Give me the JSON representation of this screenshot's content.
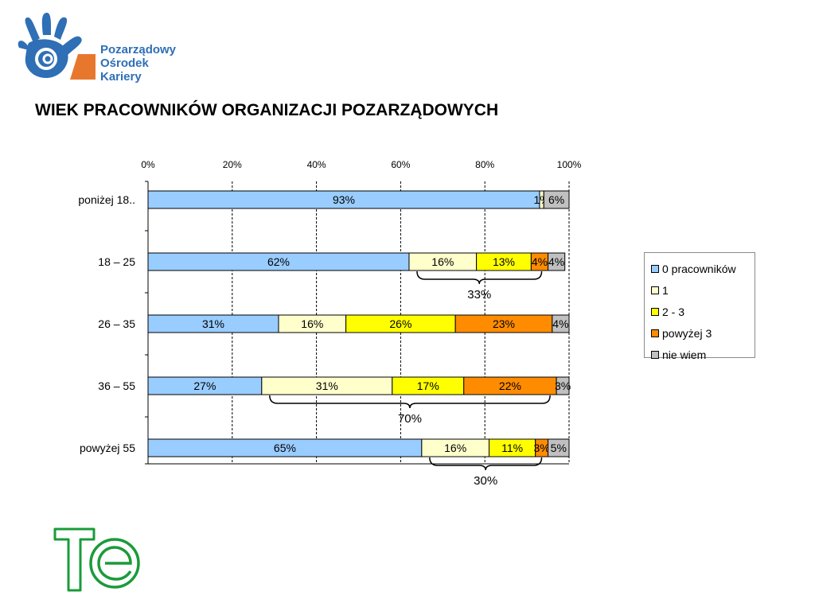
{
  "org_logo": {
    "line1": "Pozarządowy",
    "line2": "Ośrodek",
    "line3": "Kariery",
    "colors": {
      "hand": "#2f6fb6",
      "text": "#2f6fb6",
      "accent": "#e8772e"
    }
  },
  "page_title": "WIEK PRACOWNIKÓW ORGANIZACJI POZARZĄDOWYCH",
  "chart_data": {
    "type": "bar",
    "orientation": "horizontal",
    "stacked": "percent",
    "title": "",
    "xlabel": "",
    "ylabel": "",
    "xlim": [
      0,
      100
    ],
    "x_ticks": [
      "0%",
      "20%",
      "40%",
      "60%",
      "80%",
      "100%"
    ],
    "grid": true,
    "legend_placement": "right",
    "categories": [
      "poniżej 18..",
      "18 – 25",
      "26 – 35",
      "36 – 55",
      "powyżej 55"
    ],
    "series": [
      {
        "name": "0 pracowników",
        "color": "#99ccff",
        "values": [
          93,
          62,
          31,
          27,
          65
        ],
        "labels": [
          "93%",
          "62%",
          "31%",
          "27%",
          "65%"
        ]
      },
      {
        "name": "1",
        "color": "#ffffcc",
        "values": [
          1,
          16,
          16,
          31,
          16
        ],
        "labels": [
          "1%",
          "16%",
          "16%",
          "31%",
          "16%"
        ]
      },
      {
        "name": "2 - 3",
        "color": "#ffff00",
        "values": [
          0,
          13,
          26,
          17,
          11
        ],
        "labels": [
          "",
          "13%",
          "26%",
          "17%",
          "11%"
        ]
      },
      {
        "name": "powyżej 3",
        "color": "#ff8c00",
        "values": [
          0,
          4,
          23,
          22,
          3
        ],
        "labels": [
          "",
          "4%",
          "23%",
          "22%",
          "3%"
        ]
      },
      {
        "name": "nie wiem",
        "color": "#c0c0c0",
        "values": [
          6,
          4,
          4,
          3,
          5
        ],
        "labels": [
          "6%",
          "4%",
          "4%",
          "3%",
          "5%"
        ]
      }
    ],
    "annotations": [
      {
        "category": "18 – 25",
        "from_series": 1,
        "to_series": 3,
        "text": "33%"
      },
      {
        "category": "36 – 55",
        "from_series": 1,
        "to_series": 3,
        "text": "70%"
      },
      {
        "category": "powyżej 55",
        "from_series": 1,
        "to_series": 3,
        "text": "30%"
      }
    ]
  },
  "partner_logo": {
    "name": "teo-logo",
    "color": "#1a9b3a"
  }
}
